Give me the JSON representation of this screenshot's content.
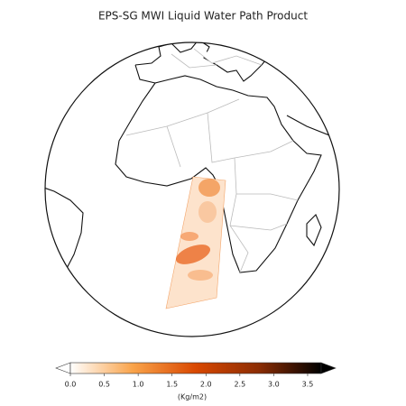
{
  "title": "EPS-SG MWI Liquid Water Path Product",
  "colorbar": {
    "range": [
      0,
      3.7
    ],
    "ticks": [
      {
        "value": 0,
        "label": "0.0"
      },
      0.5,
      {
        "value": 1,
        "label": "1.0"
      },
      1.5,
      {
        "value": 2,
        "label": "2.0"
      },
      2.5,
      {
        "value": 3,
        "label": "3.0"
      },
      3.5
    ],
    "label": "(Kg/m2)",
    "colors": [
      "#ffffff",
      "#f9a34a",
      "#d94801",
      "#8c2d04",
      "#000000"
    ]
  }
}
